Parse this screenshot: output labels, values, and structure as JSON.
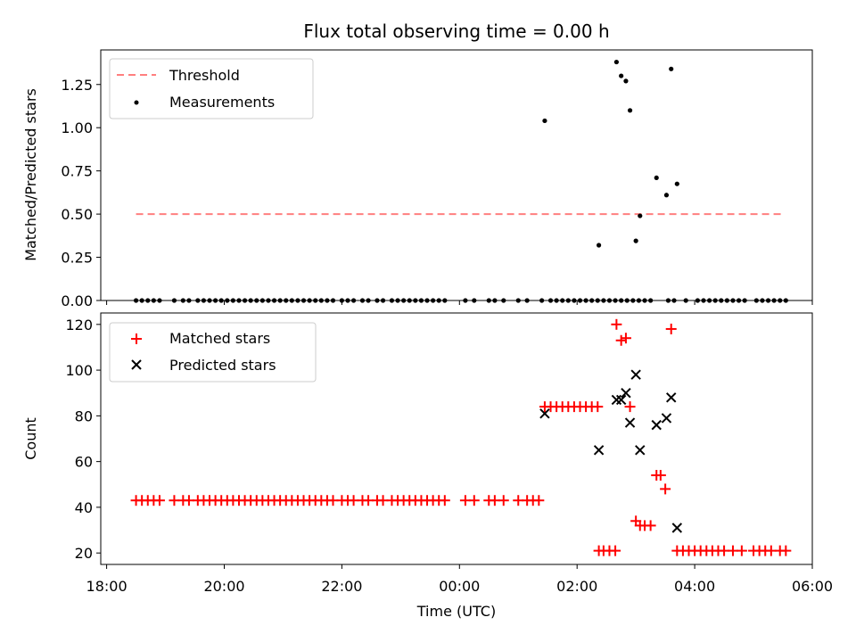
{
  "chart_data": [
    {
      "type": "scatter",
      "title": "Flux total observing time = 0.00 h",
      "xlabel": "",
      "ylabel": "Matched/Predicted stars",
      "xlim": [
        -0.1,
        12.0
      ],
      "ylim": [
        0,
        1.45
      ],
      "yticks": [
        0,
        0.25,
        0.5,
        0.75,
        1.0,
        1.25
      ],
      "ytick_labels": [
        "0.00",
        "0.25",
        "0.50",
        "0.75",
        "1.00",
        "1.25"
      ],
      "legend": [
        {
          "label": "Threshold",
          "color": "#ff7f7f",
          "style": "dashed-line"
        },
        {
          "label": "Measurements",
          "color": "#000000",
          "style": "dot"
        }
      ],
      "threshold": {
        "value": 0.5,
        "x_start": 0.5,
        "x_end": 11.5
      },
      "series": [
        {
          "name": "Measurements",
          "points": [
            [
              0.5,
              0.0
            ],
            [
              0.6,
              0.0
            ],
            [
              0.7,
              0.0
            ],
            [
              0.8,
              0.0
            ],
            [
              0.9,
              0.0
            ],
            [
              1.15,
              0.0
            ],
            [
              1.3,
              0.0
            ],
            [
              1.4,
              0.0
            ],
            [
              1.55,
              0.0
            ],
            [
              1.65,
              0.0
            ],
            [
              1.75,
              0.0
            ],
            [
              1.85,
              0.0
            ],
            [
              1.95,
              0.0
            ],
            [
              2.05,
              0.0
            ],
            [
              2.15,
              0.0
            ],
            [
              2.25,
              0.0
            ],
            [
              2.35,
              0.0
            ],
            [
              2.45,
              0.0
            ],
            [
              2.55,
              0.0
            ],
            [
              2.65,
              0.0
            ],
            [
              2.75,
              0.0
            ],
            [
              2.85,
              0.0
            ],
            [
              2.95,
              0.0
            ],
            [
              3.05,
              0.0
            ],
            [
              3.15,
              0.0
            ],
            [
              3.25,
              0.0
            ],
            [
              3.35,
              0.0
            ],
            [
              3.45,
              0.0
            ],
            [
              3.55,
              0.0
            ],
            [
              3.65,
              0.0
            ],
            [
              3.75,
              0.0
            ],
            [
              3.85,
              0.0
            ],
            [
              4.0,
              0.0
            ],
            [
              4.1,
              0.0
            ],
            [
              4.2,
              0.0
            ],
            [
              4.35,
              0.0
            ],
            [
              4.45,
              0.0
            ],
            [
              4.6,
              0.0
            ],
            [
              4.7,
              0.0
            ],
            [
              4.85,
              0.0
            ],
            [
              4.95,
              0.0
            ],
            [
              5.05,
              0.0
            ],
            [
              5.15,
              0.0
            ],
            [
              5.25,
              0.0
            ],
            [
              5.35,
              0.0
            ],
            [
              5.45,
              0.0
            ],
            [
              5.55,
              0.0
            ],
            [
              5.65,
              0.0
            ],
            [
              5.75,
              0.0
            ],
            [
              6.1,
              0.0
            ],
            [
              6.25,
              0.0
            ],
            [
              6.5,
              0.0
            ],
            [
              6.6,
              0.0
            ],
            [
              6.75,
              0.0
            ],
            [
              7.0,
              0.0
            ],
            [
              7.15,
              0.0
            ],
            [
              7.4,
              0.0
            ],
            [
              7.55,
              0.0
            ],
            [
              7.65,
              0.0
            ],
            [
              7.75,
              0.0
            ],
            [
              7.85,
              0.0
            ],
            [
              7.95,
              0.0
            ],
            [
              8.05,
              0.0
            ],
            [
              8.15,
              0.0
            ],
            [
              8.25,
              0.0
            ],
            [
              8.35,
              0.0
            ],
            [
              8.45,
              0.0
            ],
            [
              8.55,
              0.0
            ],
            [
              8.65,
              0.0
            ],
            [
              8.75,
              0.0
            ],
            [
              8.85,
              0.0
            ],
            [
              8.95,
              0.0
            ],
            [
              9.05,
              0.0
            ],
            [
              9.15,
              0.0
            ],
            [
              9.25,
              0.0
            ],
            [
              9.55,
              0.0
            ],
            [
              9.65,
              0.0
            ],
            [
              9.85,
              0.0
            ],
            [
              10.05,
              0.0
            ],
            [
              10.15,
              0.0
            ],
            [
              10.25,
              0.0
            ],
            [
              10.35,
              0.0
            ],
            [
              10.45,
              0.0
            ],
            [
              10.55,
              0.0
            ],
            [
              10.65,
              0.0
            ],
            [
              10.75,
              0.0
            ],
            [
              10.85,
              0.0
            ],
            [
              11.05,
              0.0
            ],
            [
              11.15,
              0.0
            ],
            [
              11.25,
              0.0
            ],
            [
              11.35,
              0.0
            ],
            [
              11.45,
              0.0
            ],
            [
              11.55,
              0.0
            ],
            [
              7.45,
              1.04
            ],
            [
              8.37,
              0.32
            ],
            [
              8.67,
              1.38
            ],
            [
              8.75,
              1.3
            ],
            [
              8.83,
              1.27
            ],
            [
              8.9,
              1.1
            ],
            [
              9.0,
              0.345
            ],
            [
              9.07,
              0.49
            ],
            [
              9.35,
              0.71
            ],
            [
              9.52,
              0.61
            ],
            [
              9.6,
              1.34
            ],
            [
              9.7,
              0.675
            ]
          ]
        }
      ]
    },
    {
      "type": "scatter",
      "title": "",
      "xlabel": "Time (UTC)",
      "ylabel": "Count",
      "xlim": [
        -0.1,
        12.0
      ],
      "ylim": [
        15,
        125
      ],
      "yticks": [
        20,
        40,
        60,
        80,
        100,
        120
      ],
      "ytick_labels": [
        "20",
        "40",
        "60",
        "80",
        "100",
        "120"
      ],
      "xticks": [
        0,
        2,
        4,
        6,
        8,
        10,
        12
      ],
      "xtick_labels": [
        "18:00",
        "20:00",
        "22:00",
        "00:00",
        "02:00",
        "04:00",
        "06:00"
      ],
      "legend": [
        {
          "label": "Matched stars",
          "color": "#ff0000",
          "marker": "+"
        },
        {
          "label": "Predicted stars",
          "color": "#000000",
          "marker": "x"
        }
      ],
      "series": [
        {
          "name": "Matched stars",
          "points": [
            [
              0.5,
              43
            ],
            [
              0.6,
              43
            ],
            [
              0.7,
              43
            ],
            [
              0.8,
              43
            ],
            [
              0.9,
              43
            ],
            [
              1.15,
              43
            ],
            [
              1.3,
              43
            ],
            [
              1.4,
              43
            ],
            [
              1.55,
              43
            ],
            [
              1.65,
              43
            ],
            [
              1.75,
              43
            ],
            [
              1.85,
              43
            ],
            [
              1.95,
              43
            ],
            [
              2.05,
              43
            ],
            [
              2.15,
              43
            ],
            [
              2.25,
              43
            ],
            [
              2.35,
              43
            ],
            [
              2.45,
              43
            ],
            [
              2.55,
              43
            ],
            [
              2.65,
              43
            ],
            [
              2.75,
              43
            ],
            [
              2.85,
              43
            ],
            [
              2.95,
              43
            ],
            [
              3.05,
              43
            ],
            [
              3.15,
              43
            ],
            [
              3.25,
              43
            ],
            [
              3.35,
              43
            ],
            [
              3.45,
              43
            ],
            [
              3.55,
              43
            ],
            [
              3.65,
              43
            ],
            [
              3.75,
              43
            ],
            [
              3.85,
              43
            ],
            [
              4.0,
              43
            ],
            [
              4.1,
              43
            ],
            [
              4.2,
              43
            ],
            [
              4.35,
              43
            ],
            [
              4.45,
              43
            ],
            [
              4.6,
              43
            ],
            [
              4.7,
              43
            ],
            [
              4.85,
              43
            ],
            [
              4.95,
              43
            ],
            [
              5.05,
              43
            ],
            [
              5.15,
              43
            ],
            [
              5.25,
              43
            ],
            [
              5.35,
              43
            ],
            [
              5.45,
              43
            ],
            [
              5.55,
              43
            ],
            [
              5.65,
              43
            ],
            [
              5.75,
              43
            ],
            [
              6.1,
              43
            ],
            [
              6.25,
              43
            ],
            [
              6.5,
              43
            ],
            [
              6.6,
              43
            ],
            [
              6.75,
              43
            ],
            [
              7.0,
              43
            ],
            [
              7.15,
              43
            ],
            [
              7.25,
              43
            ],
            [
              7.35,
              43
            ],
            [
              7.45,
              84
            ],
            [
              7.55,
              84
            ],
            [
              7.65,
              84
            ],
            [
              7.75,
              84
            ],
            [
              7.85,
              84
            ],
            [
              7.95,
              84
            ],
            [
              8.05,
              84
            ],
            [
              8.15,
              84
            ],
            [
              8.25,
              84
            ],
            [
              8.35,
              84
            ],
            [
              8.37,
              21
            ],
            [
              8.45,
              21
            ],
            [
              8.55,
              21
            ],
            [
              8.65,
              21
            ],
            [
              8.67,
              120
            ],
            [
              8.75,
              113
            ],
            [
              8.83,
              114
            ],
            [
              8.9,
              84
            ],
            [
              9.0,
              34
            ],
            [
              9.07,
              32
            ],
            [
              9.15,
              32
            ],
            [
              9.25,
              32
            ],
            [
              9.35,
              54
            ],
            [
              9.42,
              54
            ],
            [
              9.5,
              48
            ],
            [
              9.6,
              118
            ],
            [
              9.7,
              21
            ],
            [
              9.8,
              21
            ],
            [
              9.9,
              21
            ],
            [
              10.0,
              21
            ],
            [
              10.1,
              21
            ],
            [
              10.2,
              21
            ],
            [
              10.3,
              21
            ],
            [
              10.4,
              21
            ],
            [
              10.5,
              21
            ],
            [
              10.65,
              21
            ],
            [
              10.8,
              21
            ],
            [
              11.0,
              21
            ],
            [
              11.1,
              21
            ],
            [
              11.2,
              21
            ],
            [
              11.3,
              21
            ],
            [
              11.45,
              21
            ],
            [
              11.55,
              21
            ]
          ]
        },
        {
          "name": "Predicted stars",
          "points": [
            [
              7.45,
              81
            ],
            [
              8.37,
              65
            ],
            [
              8.67,
              87
            ],
            [
              8.75,
              87
            ],
            [
              8.83,
              90
            ],
            [
              8.9,
              77
            ],
            [
              9.0,
              98
            ],
            [
              9.07,
              65
            ],
            [
              9.35,
              76
            ],
            [
              9.52,
              79
            ],
            [
              9.6,
              88
            ],
            [
              9.7,
              31
            ]
          ]
        }
      ]
    }
  ]
}
